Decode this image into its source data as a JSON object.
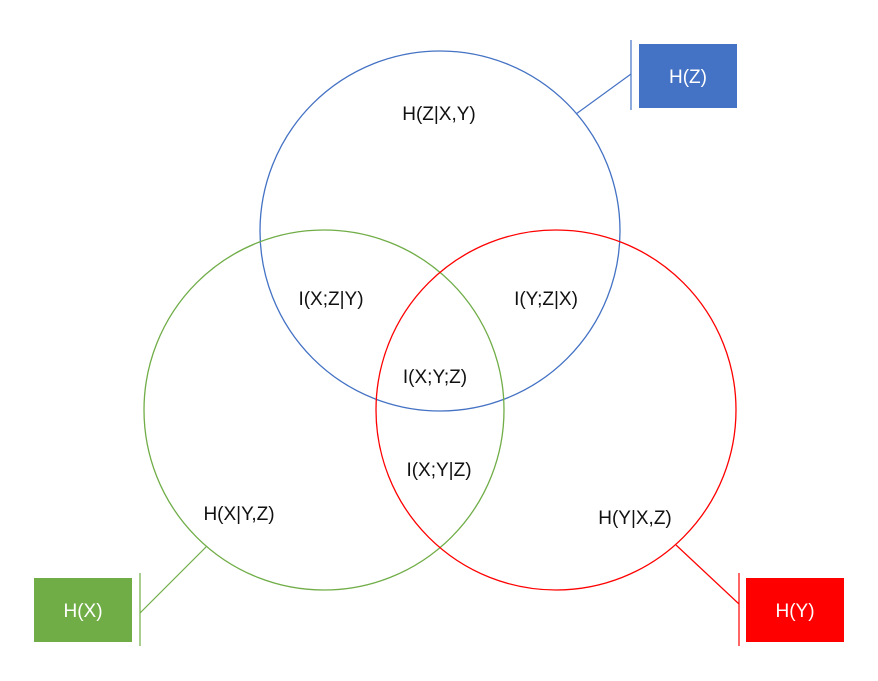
{
  "diagram": {
    "circles": {
      "z": {
        "color": "#4472C4"
      },
      "x": {
        "color": "#70AD47"
      },
      "y": {
        "color": "#FF0000"
      }
    },
    "regions": {
      "h_z_given_xy": "H(Z|X,Y)",
      "i_xz_given_y": "I(X;Z|Y)",
      "i_yz_given_x": "I(Y;Z|X)",
      "i_xyz": "I(X;Y;Z)",
      "i_xy_given_z": "I(X;Y|Z)",
      "h_x_given_yz": "H(X|Y,Z)",
      "h_y_given_xz": "H(Y|X,Z)"
    },
    "legend": {
      "z": {
        "label": "H(Z)",
        "color": "#4472C4"
      },
      "x": {
        "label": "H(X)",
        "color": "#70AD47"
      },
      "y": {
        "label": "H(Y)",
        "color": "#FF0000"
      }
    }
  }
}
